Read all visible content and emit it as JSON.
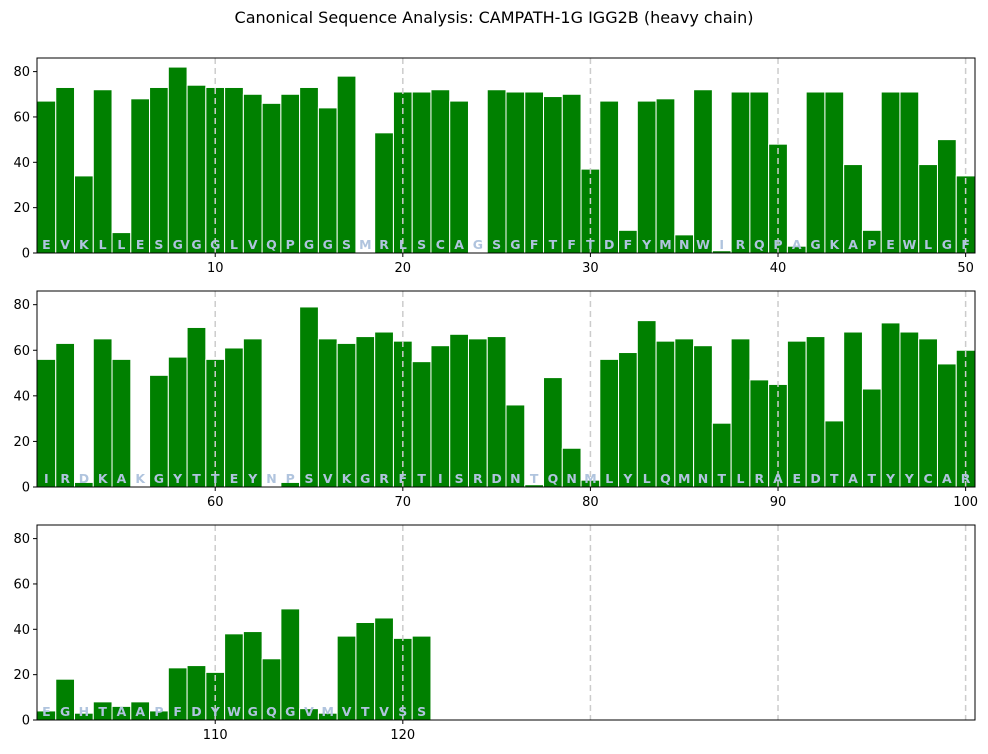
{
  "chart_data": {
    "type": "bar",
    "title": "Canonical Sequence Analysis: CAMPATH-1G IGG2B (heavy chain)",
    "xlabel": "",
    "ylabel": "",
    "ylim": [
      0,
      86
    ],
    "y_ticks": [
      0,
      20,
      40,
      60,
      80
    ],
    "grid": "vertical dashed lines at every 10th position",
    "colors": {
      "bar": "#008000",
      "residue_on_bar": "#b0c4de",
      "grid": "#cccccc"
    },
    "panels": [
      {
        "xlim": [
          0.5,
          50.5
        ],
        "x_ticks": [
          10,
          20,
          30,
          40,
          50
        ],
        "positions": [
          1,
          2,
          3,
          4,
          5,
          6,
          7,
          8,
          9,
          10,
          11,
          12,
          13,
          14,
          15,
          16,
          17,
          18,
          19,
          20,
          21,
          22,
          23,
          24,
          25,
          26,
          27,
          28,
          29,
          30,
          31,
          32,
          33,
          34,
          35,
          36,
          37,
          38,
          39,
          40,
          41,
          42,
          43,
          44,
          45,
          46,
          47,
          48,
          49,
          50
        ],
        "residues": [
          "E",
          "V",
          "K",
          "L",
          "L",
          "E",
          "S",
          "G",
          "G",
          "G",
          "L",
          "V",
          "Q",
          "P",
          "G",
          "G",
          "S",
          "M",
          "R",
          "L",
          "S",
          "C",
          "A",
          "G",
          "S",
          "G",
          "F",
          "T",
          "F",
          "T",
          "D",
          "F",
          "Y",
          "M",
          "N",
          "W",
          "I",
          "R",
          "Q",
          "P",
          "A",
          "G",
          "K",
          "A",
          "P",
          "E",
          "W",
          "L",
          "G",
          "F"
        ],
        "values": [
          67,
          73,
          34,
          72,
          9,
          68,
          73,
          82,
          74,
          73,
          73,
          70,
          66,
          70,
          73,
          64,
          78,
          0,
          53,
          71,
          71,
          72,
          67,
          0,
          72,
          71,
          71,
          69,
          70,
          37,
          67,
          10,
          67,
          68,
          8,
          72,
          1,
          71,
          71,
          48,
          3,
          71,
          71,
          39,
          10,
          71,
          71,
          39,
          50,
          34
        ]
      },
      {
        "xlim": [
          50.5,
          100.5
        ],
        "x_ticks": [
          60,
          70,
          80,
          90,
          100
        ],
        "positions": [
          51,
          52,
          53,
          54,
          55,
          56,
          57,
          58,
          59,
          60,
          61,
          62,
          63,
          64,
          65,
          66,
          67,
          68,
          69,
          70,
          71,
          72,
          73,
          74,
          75,
          76,
          77,
          78,
          79,
          80,
          81,
          82,
          83,
          84,
          85,
          86,
          87,
          88,
          89,
          90,
          91,
          92,
          93,
          94,
          95,
          96,
          97,
          98,
          99,
          100
        ],
        "residues": [
          "I",
          "R",
          "D",
          "K",
          "A",
          "K",
          "G",
          "Y",
          "T",
          "T",
          "E",
          "Y",
          "N",
          "P",
          "S",
          "V",
          "K",
          "G",
          "R",
          "F",
          "T",
          "I",
          "S",
          "R",
          "D",
          "N",
          "T",
          "Q",
          "N",
          "M",
          "L",
          "Y",
          "L",
          "Q",
          "M",
          "N",
          "T",
          "L",
          "R",
          "A",
          "E",
          "D",
          "T",
          "A",
          "T",
          "Y",
          "Y",
          "C",
          "A",
          "R"
        ],
        "values": [
          56,
          63,
          2,
          65,
          56,
          0,
          49,
          57,
          70,
          56,
          61,
          65,
          0,
          2,
          79,
          65,
          63,
          66,
          68,
          64,
          55,
          62,
          67,
          65,
          66,
          36,
          1,
          48,
          17,
          3,
          56,
          59,
          73,
          64,
          65,
          62,
          28,
          65,
          47,
          45,
          64,
          66,
          29,
          68,
          43,
          72,
          68,
          65,
          54,
          60
        ]
      },
      {
        "xlim": [
          100.5,
          150.5
        ],
        "x_ticks": [
          110,
          120
        ],
        "positions": [
          101,
          102,
          103,
          104,
          105,
          106,
          107,
          108,
          109,
          110,
          111,
          112,
          113,
          114,
          115,
          116,
          117,
          118,
          119,
          120,
          121
        ],
        "residues": [
          "E",
          "G",
          "H",
          "T",
          "A",
          "A",
          "P",
          "F",
          "D",
          "Y",
          "W",
          "G",
          "Q",
          "G",
          "V",
          "M",
          "V",
          "T",
          "V",
          "S",
          "S"
        ],
        "values": [
          4,
          18,
          3,
          8,
          6,
          8,
          4,
          23,
          24,
          21,
          38,
          39,
          27,
          49,
          5,
          3,
          37,
          43,
          45,
          36,
          37
        ]
      }
    ]
  }
}
